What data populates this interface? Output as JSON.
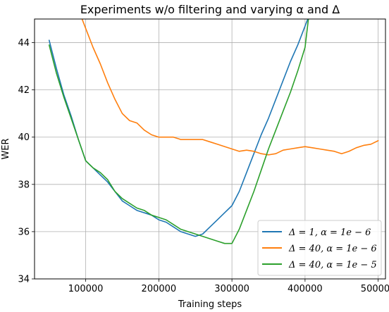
{
  "chart_data": {
    "type": "line",
    "title": "Experiments w/o filtering and varying α and Δ",
    "xlabel": "Training steps",
    "ylabel": "WER",
    "xlim": [
      30000,
      510000
    ],
    "ylim": [
      34,
      45
    ],
    "xticks": [
      100000,
      200000,
      300000,
      400000,
      500000
    ],
    "xtick_labels": [
      "100000",
      "200000",
      "300000",
      "400000",
      "500000"
    ],
    "yticks": [
      34,
      36,
      38,
      40,
      42,
      44
    ],
    "ytick_labels": [
      "34",
      "36",
      "38",
      "40",
      "42",
      "44"
    ],
    "grid": true,
    "legend_position": "lower-right",
    "series": [
      {
        "name": "Δ = 1, α = 1e − 6",
        "color": "#1f77b4",
        "x": [
          50000,
          60000,
          70000,
          80000,
          90000,
          100000,
          110000,
          120000,
          130000,
          140000,
          150000,
          160000,
          170000,
          180000,
          190000,
          200000,
          210000,
          220000,
          230000,
          240000,
          250000,
          260000,
          270000,
          280000,
          290000,
          300000,
          310000,
          320000,
          330000,
          340000,
          350000,
          360000,
          370000,
          380000,
          390000,
          400000,
          405000
        ],
        "values": [
          44.1,
          42.9,
          41.8,
          40.9,
          39.9,
          39.0,
          38.7,
          38.4,
          38.1,
          37.7,
          37.3,
          37.1,
          36.9,
          36.8,
          36.7,
          36.5,
          36.4,
          36.2,
          36.0,
          35.9,
          35.8,
          35.9,
          36.2,
          36.5,
          36.8,
          37.1,
          37.7,
          38.5,
          39.3,
          40.1,
          40.8,
          41.6,
          42.4,
          43.2,
          43.9,
          44.7,
          45.1
        ]
      },
      {
        "name": "Δ = 40, α = 1e − 6",
        "color": "#ff7f0e",
        "x": [
          95000,
          100000,
          110000,
          120000,
          130000,
          140000,
          150000,
          160000,
          170000,
          180000,
          190000,
          200000,
          210000,
          220000,
          230000,
          240000,
          250000,
          260000,
          270000,
          280000,
          290000,
          300000,
          310000,
          320000,
          330000,
          340000,
          350000,
          360000,
          370000,
          380000,
          390000,
          400000,
          410000,
          420000,
          430000,
          440000,
          450000,
          460000,
          470000,
          480000,
          490000,
          500000
        ],
        "values": [
          45.0,
          44.6,
          43.8,
          43.1,
          42.3,
          41.6,
          41.0,
          40.7,
          40.6,
          40.3,
          40.1,
          40.0,
          40.0,
          40.0,
          39.9,
          39.9,
          39.9,
          39.9,
          39.8,
          39.7,
          39.6,
          39.5,
          39.4,
          39.45,
          39.4,
          39.3,
          39.25,
          39.3,
          39.45,
          39.5,
          39.55,
          39.6,
          39.55,
          39.5,
          39.45,
          39.4,
          39.3,
          39.4,
          39.55,
          39.65,
          39.7,
          39.85
        ]
      },
      {
        "name": "Δ = 40, α = 1e − 5",
        "color": "#2ca02c",
        "x": [
          50000,
          60000,
          70000,
          80000,
          90000,
          100000,
          110000,
          120000,
          130000,
          140000,
          150000,
          160000,
          170000,
          180000,
          190000,
          200000,
          210000,
          220000,
          230000,
          240000,
          250000,
          260000,
          270000,
          280000,
          290000,
          300000,
          310000,
          320000,
          330000,
          340000,
          350000,
          360000,
          370000,
          380000,
          390000,
          400000,
          405000
        ],
        "values": [
          43.9,
          42.7,
          41.7,
          40.8,
          39.9,
          39.0,
          38.7,
          38.5,
          38.2,
          37.7,
          37.4,
          37.2,
          37.0,
          36.9,
          36.7,
          36.6,
          36.5,
          36.3,
          36.1,
          36.0,
          35.9,
          35.8,
          35.7,
          35.6,
          35.5,
          35.5,
          36.1,
          36.9,
          37.7,
          38.6,
          39.5,
          40.3,
          41.1,
          41.9,
          42.8,
          43.8,
          45.1
        ]
      }
    ]
  }
}
